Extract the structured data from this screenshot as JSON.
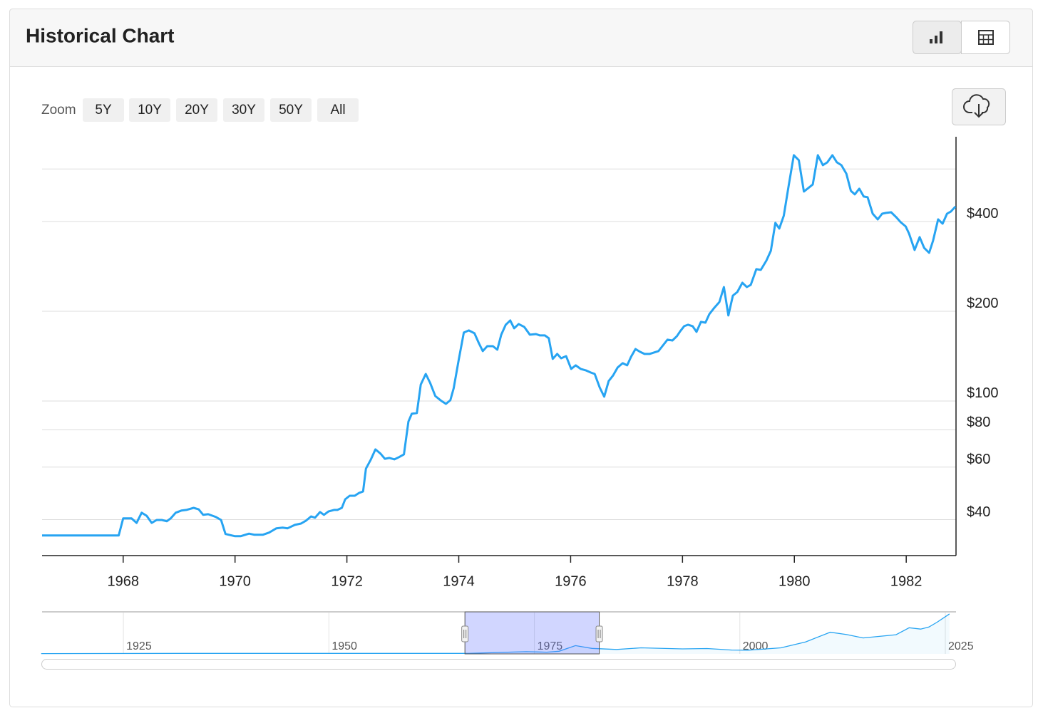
{
  "header": {
    "title": "Historical Chart"
  },
  "zoom": {
    "label": "Zoom",
    "buttons": [
      "5Y",
      "10Y",
      "20Y",
      "30Y",
      "50Y",
      "All"
    ]
  },
  "chart_data": [
    {
      "type": "line",
      "color": "#27a4f2",
      "log_scale": true,
      "grid": true,
      "x": [
        1966.55,
        1967.92,
        1968.0,
        1968.15,
        1968.24,
        1968.33,
        1968.42,
        1968.51,
        1968.6,
        1968.69,
        1968.78,
        1968.85,
        1968.94,
        1969.04,
        1969.13,
        1969.26,
        1969.35,
        1969.43,
        1969.52,
        1969.66,
        1969.75,
        1969.83,
        1970.0,
        1970.1,
        1970.25,
        1970.34,
        1970.5,
        1970.61,
        1970.74,
        1970.85,
        1970.94,
        1971.07,
        1971.18,
        1971.27,
        1971.36,
        1971.43,
        1971.52,
        1971.59,
        1971.67,
        1971.77,
        1971.83,
        1971.91,
        1971.97,
        1972.05,
        1972.14,
        1972.22,
        1972.29,
        1972.34,
        1972.43,
        1972.51,
        1972.6,
        1972.68,
        1972.76,
        1972.85,
        1972.93,
        1973.02,
        1973.1,
        1973.16,
        1973.25,
        1973.32,
        1973.41,
        1973.49,
        1973.58,
        1973.69,
        1973.77,
        1973.85,
        1973.91,
        1974.0,
        1974.09,
        1974.18,
        1974.28,
        1974.36,
        1974.43,
        1974.51,
        1974.61,
        1974.69,
        1974.76,
        1974.84,
        1974.92,
        1974.99,
        1975.07,
        1975.17,
        1975.27,
        1975.38,
        1975.45,
        1975.54,
        1975.61,
        1975.68,
        1975.76,
        1975.83,
        1975.92,
        1976.01,
        1976.09,
        1976.18,
        1976.27,
        1976.36,
        1976.43,
        1976.52,
        1976.6,
        1976.68,
        1976.76,
        1976.84,
        1976.93,
        1977.01,
        1977.08,
        1977.16,
        1977.24,
        1977.32,
        1977.41,
        1977.49,
        1977.57,
        1977.64,
        1977.73,
        1977.82,
        1977.9,
        1977.96,
        1978.03,
        1978.1,
        1978.18,
        1978.25,
        1978.33,
        1978.41,
        1978.48,
        1978.56,
        1978.66,
        1978.74,
        1978.82,
        1978.9,
        1978.98,
        1979.07,
        1979.15,
        1979.22,
        1979.32,
        1979.4,
        1979.5,
        1979.58,
        1979.66,
        1979.73,
        1979.81,
        1979.9,
        1979.99,
        1980.08,
        1980.17,
        1980.25,
        1980.33,
        1980.42,
        1980.51,
        1980.59,
        1980.68,
        1980.76,
        1980.84,
        1980.93,
        1981.01,
        1981.08,
        1981.16,
        1981.24,
        1981.31,
        1981.4,
        1981.49,
        1981.57,
        1981.64,
        1981.73,
        1981.82,
        1981.9,
        1981.99,
        1982.05,
        1982.15,
        1982.24,
        1982.32,
        1982.41,
        1982.48,
        1982.57,
        1982.65,
        1982.73,
        1982.8,
        1982.88
      ],
      "values": [
        35.4,
        35.4,
        40.4,
        40.4,
        39.0,
        42.2,
        41.2,
        39.0,
        39.9,
        39.9,
        39.5,
        40.4,
        42.2,
        42.9,
        43.1,
        43.8,
        43.3,
        41.5,
        41.7,
        40.8,
        39.9,
        35.8,
        35.2,
        35.2,
        35.9,
        35.6,
        35.6,
        36.2,
        37.4,
        37.6,
        37.4,
        38.4,
        38.8,
        39.7,
        41.0,
        40.6,
        42.4,
        41.5,
        42.6,
        43.1,
        43.1,
        43.8,
        46.8,
        48.1,
        48.1,
        49.2,
        49.7,
        59.3,
        63.7,
        68.8,
        66.6,
        64.0,
        64.4,
        63.7,
        64.8,
        66.2,
        85.3,
        90.6,
        91.1,
        113.5,
        123.2,
        114.8,
        103.9,
        100,
        97.8,
        100.6,
        110.4,
        137.6,
        169.6,
        172.4,
        168.7,
        156.1,
        147.0,
        152.7,
        152.7,
        148.6,
        166.8,
        180.2,
        186.2,
        175.3,
        181.2,
        177.2,
        166.8,
        167.7,
        165.9,
        165.9,
        162.3,
        138.4,
        143.8,
        139.1,
        141.4,
        128.1,
        131.7,
        128.1,
        126.7,
        124.6,
        123.2,
        111.0,
        103.4,
        116.7,
        121.9,
        129.5,
        133.9,
        131.7,
        140.7,
        149.4,
        146.2,
        143.8,
        143.8,
        145.4,
        147.0,
        152.7,
        160.5,
        159.6,
        165.0,
        171.5,
        178.2,
        180.2,
        178.2,
        170.5,
        184.2,
        183.1,
        195.6,
        204.5,
        214.8,
        241.1,
        193.5,
        225.7,
        232.0,
        249.2,
        241.1,
        245.2,
        276.7,
        275.2,
        295.6,
        319.2,
        395.6,
        378.6,
        418.0,
        529.5,
        667.2,
        642.0,
        504.0,
        518.0,
        532.5,
        667.2,
        617.7,
        631.5,
        667.2,
        631.5,
        617.7,
        578.3,
        506.8,
        493.0,
        515.2,
        485.0,
        482.3,
        424.9,
        406.6,
        424.9,
        427.3,
        429.6,
        413.4,
        397.8,
        384.9,
        364.3,
        321.0,
        354.4,
        326.3,
        314.0,
        344.8,
        406.6,
        393.4,
        424.9,
        432.0,
        448.9
      ],
      "xlim": [
        1966.55,
        1982.89
      ],
      "xticks": [
        1968,
        1970,
        1972,
        1974,
        1976,
        1978,
        1980,
        1982
      ],
      "ylim": [
        30.3,
        778
      ],
      "yticks": [
        {
          "value": 40,
          "label": "$40"
        },
        {
          "value": 60,
          "label": "$60"
        },
        {
          "value": 80,
          "label": "$80"
        },
        {
          "value": 100,
          "label": "$100"
        },
        {
          "value": 200,
          "label": "$200"
        },
        {
          "value": 400,
          "label": "$400"
        },
        {
          "value": 600,
          "label": null
        }
      ]
    },
    {
      "type": "area",
      "color": "#27a4f2",
      "x": [
        1915,
        1933,
        1967,
        1974,
        1975.5,
        1976.5,
        1978,
        1980,
        1982,
        1985,
        1988,
        1993,
        1996,
        1999,
        2001,
        2005,
        2008,
        2011,
        2013,
        2015,
        2019,
        2020.6,
        2022,
        2023,
        2024,
        2025,
        2025.5
      ],
      "values": [
        20,
        35,
        35,
        160,
        140,
        125,
        190,
        600,
        400,
        320,
        440,
        360,
        390,
        280,
        270,
        440,
        870,
        1570,
        1400,
        1160,
        1390,
        1900,
        1800,
        1950,
        2300,
        2700,
        2900
      ],
      "xlim": [
        1915.1,
        2026.3
      ],
      "ylim": [
        0,
        3000
      ],
      "xticks": [
        1925,
        1950,
        1975,
        2000,
        2025
      ]
    }
  ]
}
